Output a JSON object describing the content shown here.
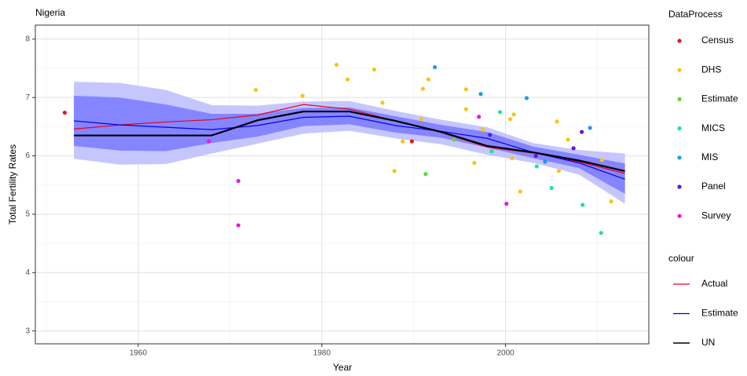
{
  "chart_data": {
    "type": "line",
    "title": "Nigeria",
    "x_label": "Year",
    "y_label": "Total Fertility Rates",
    "xlim": [
      1948.8,
      2015.6
    ],
    "ylim": [
      2.78,
      8.24
    ],
    "xticks": [
      1960,
      1980,
      2000
    ],
    "yticks": [
      3,
      4,
      5,
      6,
      7,
      8
    ],
    "xminor": [
      1950,
      1970,
      1990,
      2010
    ],
    "yminor": [
      3.5,
      4.5,
      5.5,
      6.5,
      7.5
    ],
    "grid": true,
    "legend": "right",
    "bands": [
      {
        "color": "#c6c6ff",
        "x": [
          1953,
          1958,
          1963,
          1968,
          1973,
          1978,
          1983,
          1988,
          1993,
          1998,
          2003,
          2008,
          2013
        ],
        "lower": [
          5.95,
          5.85,
          5.86,
          6.04,
          6.21,
          6.38,
          6.43,
          6.3,
          6.2,
          6.02,
          5.88,
          5.68,
          5.18
        ],
        "upper": [
          7.27,
          7.25,
          7.13,
          6.87,
          6.86,
          6.93,
          6.94,
          6.77,
          6.62,
          6.49,
          6.22,
          6.1,
          6.04
        ]
      },
      {
        "color": "#8585ff",
        "x": [
          1953,
          1958,
          1963,
          1968,
          1973,
          1978,
          1983,
          1988,
          1993,
          1998,
          2003,
          2008,
          2013
        ],
        "lower": [
          6.17,
          6.09,
          6.08,
          6.22,
          6.33,
          6.51,
          6.54,
          6.4,
          6.31,
          6.14,
          5.96,
          5.79,
          5.35
        ],
        "upper": [
          7.03,
          7.0,
          6.88,
          6.72,
          6.72,
          6.82,
          6.83,
          6.68,
          6.53,
          6.41,
          6.16,
          6.02,
          5.87
        ]
      }
    ],
    "line_legend_title": "colour",
    "series": [
      {
        "name": "Actual",
        "color": "#e8001c",
        "width": 1.2,
        "x": [
          1953,
          1958,
          1963,
          1968,
          1973,
          1978,
          1983,
          1988,
          1993,
          1998,
          2003,
          2008,
          2013
        ],
        "values": [
          6.46,
          6.53,
          6.58,
          6.62,
          6.7,
          6.88,
          6.8,
          6.6,
          6.4,
          6.15,
          6.05,
          5.9,
          5.7
        ]
      },
      {
        "name": "Estimate",
        "color": "#0000ee",
        "width": 1.2,
        "x": [
          1953,
          1958,
          1963,
          1968,
          1973,
          1978,
          1983,
          1988,
          1993,
          1998,
          2003,
          2008,
          2013
        ],
        "values": [
          6.6,
          6.53,
          6.49,
          6.45,
          6.52,
          6.66,
          6.68,
          6.52,
          6.42,
          6.3,
          6.06,
          5.88,
          5.6
        ]
      },
      {
        "name": "UN",
        "color": "#000000",
        "width": 2.2,
        "x": [
          1953,
          1958,
          1963,
          1968,
          1973,
          1978,
          1983,
          1988,
          1993,
          1998,
          2003,
          2008,
          2013
        ],
        "values": [
          6.35,
          6.35,
          6.35,
          6.35,
          6.61,
          6.76,
          6.76,
          6.6,
          6.41,
          6.17,
          6.06,
          5.92,
          5.74
        ]
      }
    ],
    "point_legend_title": "DataProcess",
    "points": [
      {
        "name": "Census",
        "color": "#e8161c",
        "x": [
          1952.0,
          1989.8
        ],
        "values": [
          6.74,
          6.25
        ]
      },
      {
        "name": "DHS",
        "color": "#f5c710",
        "x": [
          1972.8,
          1977.9,
          1981.6,
          1982.8,
          1985.7,
          1986.6,
          1987.9,
          1988.8,
          1990.8,
          1991.0,
          1991.6,
          1995.7,
          1995.7,
          1996.6,
          1997.5,
          2000.5,
          2000.9,
          2000.7,
          2001.6,
          2005.6,
          2005.8,
          2006.8,
          2010.5,
          2011.5
        ],
        "values": [
          7.13,
          7.03,
          7.56,
          7.31,
          7.48,
          6.91,
          5.74,
          6.25,
          6.63,
          7.15,
          7.31,
          7.14,
          6.8,
          5.88,
          6.45,
          6.63,
          6.71,
          5.96,
          5.39,
          6.59,
          5.74,
          6.28,
          5.93,
          5.22
        ]
      },
      {
        "name": "Estimate",
        "color": "#5fd63a",
        "x": [
          1991.3,
          1994.4
        ],
        "values": [
          5.69,
          6.28
        ]
      },
      {
        "name": "MICS",
        "color": "#1ee39c",
        "x": [
          1998.5,
          1999.4,
          2003.4,
          2005.0,
          2008.4,
          2010.4
        ],
        "values": [
          6.08,
          6.75,
          5.82,
          5.45,
          5.16,
          4.68
        ]
      },
      {
        "name": "MIS",
        "color": "#1e9ce6",
        "x": [
          1992.3,
          1997.3,
          2002.3,
          2004.3,
          2009.2
        ],
        "values": [
          7.52,
          7.06,
          6.99,
          5.9,
          6.48
        ]
      },
      {
        "name": "Panel",
        "color": "#5a18e6",
        "x": [
          1998.3,
          2003.3,
          2007.4,
          2008.3
        ],
        "values": [
          6.36,
          6.0,
          6.13,
          6.41
        ]
      },
      {
        "name": "Survey",
        "color": "#ea18d8",
        "x": [
          1967.7,
          1970.9,
          1970.9,
          1997.1,
          2000.1
        ],
        "values": [
          6.25,
          5.57,
          4.81,
          6.67,
          5.18
        ]
      }
    ]
  }
}
